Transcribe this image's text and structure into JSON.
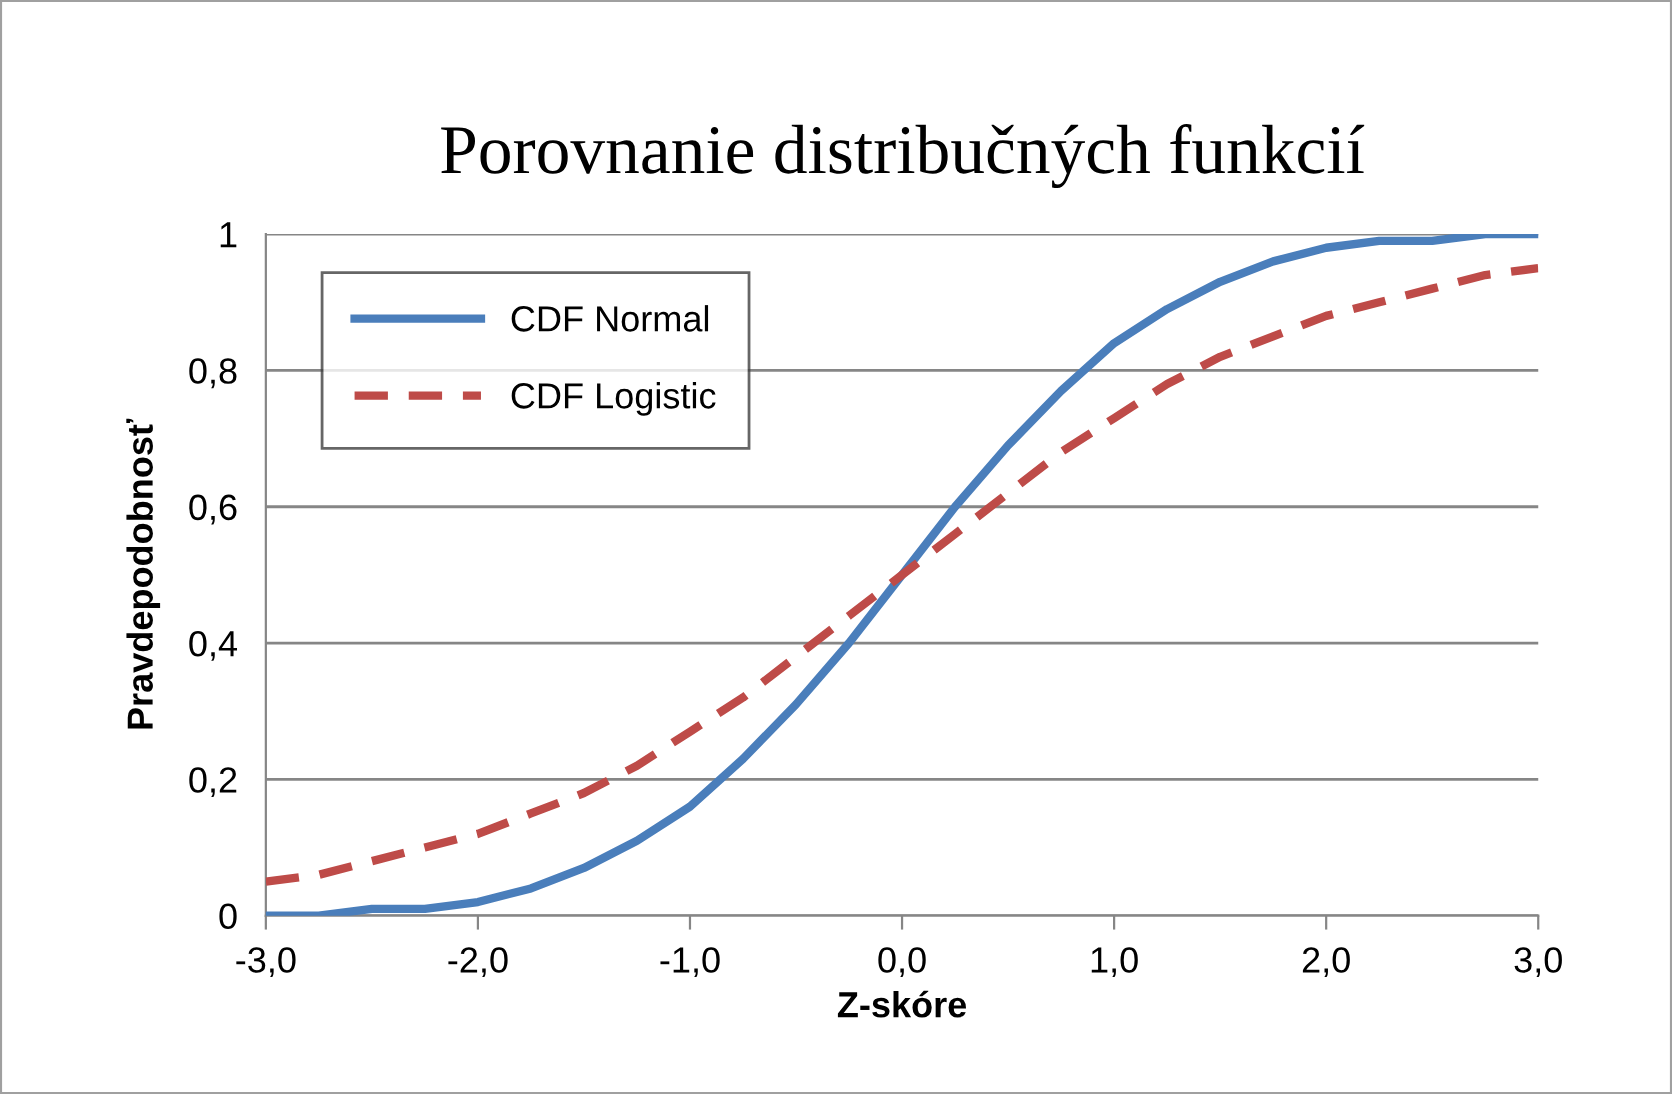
{
  "chart_data": {
    "type": "line",
    "title": "Porovnanie distribučných funkcií",
    "xlabel": "Z-skóre",
    "ylabel": "Pravdepodobnosť",
    "x": [
      -3.0,
      -2.75,
      -2.5,
      -2.25,
      -2.0,
      -1.75,
      -1.5,
      -1.25,
      -1.0,
      -0.75,
      -0.5,
      -0.25,
      0.0,
      0.25,
      0.5,
      0.75,
      1.0,
      1.25,
      1.5,
      1.75,
      2.0,
      2.25,
      2.5,
      2.75,
      3.0
    ],
    "series": [
      {
        "name": "CDF Normal",
        "color": "#4a7ebb",
        "line_style": "solid",
        "values": [
          0.0,
          0.0,
          0.01,
          0.01,
          0.02,
          0.04,
          0.07,
          0.11,
          0.16,
          0.23,
          0.31,
          0.4,
          0.5,
          0.6,
          0.69,
          0.77,
          0.84,
          0.89,
          0.93,
          0.96,
          0.98,
          0.99,
          0.99,
          1.0,
          1.0
        ]
      },
      {
        "name": "CDF Logistic",
        "color": "#be4b48",
        "line_style": "dashed",
        "values": [
          0.05,
          0.06,
          0.08,
          0.1,
          0.12,
          0.15,
          0.18,
          0.22,
          0.27,
          0.32,
          0.38,
          0.44,
          0.5,
          0.56,
          0.62,
          0.68,
          0.73,
          0.78,
          0.82,
          0.85,
          0.88,
          0.9,
          0.92,
          0.94,
          0.95
        ]
      }
    ],
    "xlim": [
      -3.0,
      3.0
    ],
    "xticks": [
      {
        "value": -3.0,
        "label": "-3,0"
      },
      {
        "value": -2.0,
        "label": "-2,0"
      },
      {
        "value": -1.0,
        "label": "-1,0"
      },
      {
        "value": 0.0,
        "label": "0,0"
      },
      {
        "value": 1.0,
        "label": "1,0"
      },
      {
        "value": 2.0,
        "label": "2,0"
      },
      {
        "value": 3.0,
        "label": "3,0"
      }
    ],
    "ylim": [
      0,
      1
    ],
    "yticks": [
      0,
      {
        "value": 0.2,
        "label": "0,2"
      },
      {
        "value": 0.4,
        "label": "0,4"
      },
      {
        "value": 0.6,
        "label": "0,6"
      },
      {
        "value": 0.8,
        "label": "0,8"
      },
      1
    ],
    "grid": "y",
    "legend": "top left",
    "marker": "none"
  }
}
